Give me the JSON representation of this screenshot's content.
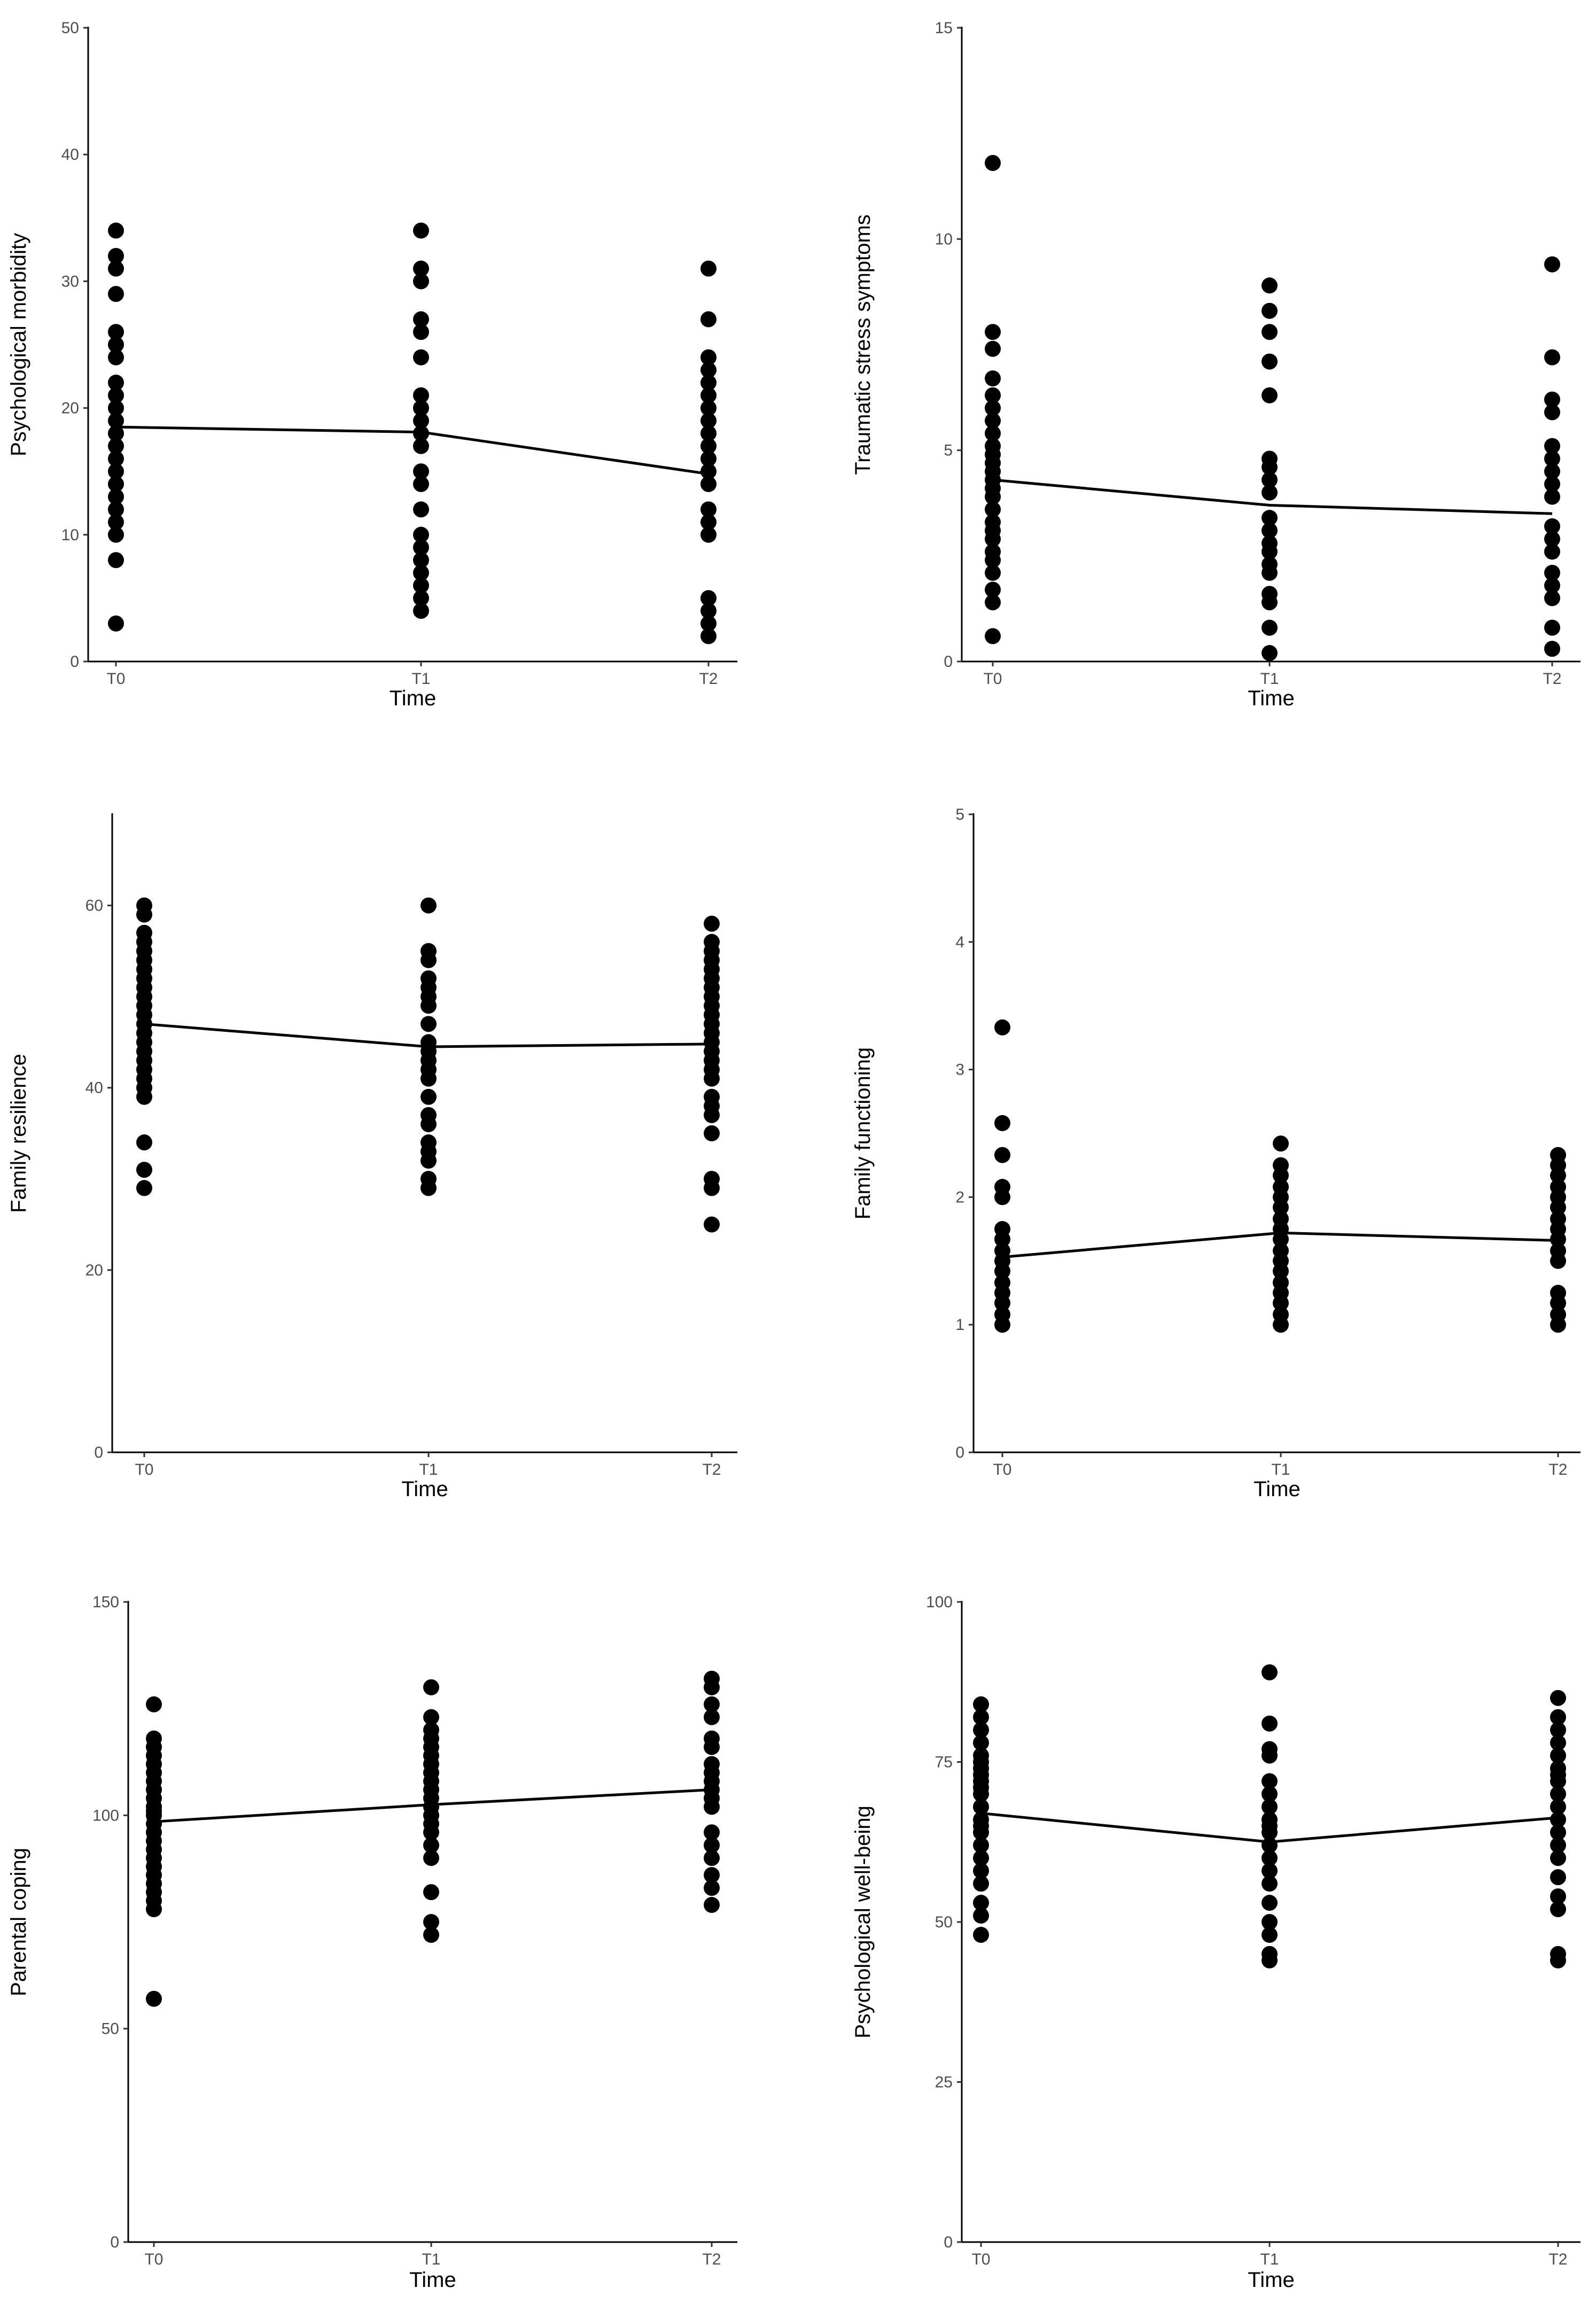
{
  "chart_data": [
    {
      "type": "scatter",
      "categories": [
        "T0",
        "T1",
        "T2"
      ],
      "xlabel": "Time",
      "ylabel": "Psychological morbidity",
      "ylim": [
        0,
        50
      ],
      "yticks": [
        0,
        10,
        20,
        30,
        40,
        50
      ],
      "grid": false,
      "points": {
        "T0": [
          3,
          8,
          10,
          11,
          12,
          13,
          14,
          15,
          16,
          17,
          18,
          19,
          20,
          21,
          22,
          24,
          25,
          26,
          29,
          31,
          32,
          34
        ],
        "T1": [
          4,
          5,
          6,
          7,
          8,
          9,
          10,
          12,
          14,
          15,
          17,
          18,
          19,
          20,
          21,
          24,
          26,
          27,
          30,
          31,
          34
        ],
        "T2": [
          2,
          3,
          4,
          5,
          10,
          11,
          12,
          14,
          15,
          16,
          17,
          18,
          19,
          20,
          21,
          22,
          23,
          24,
          27,
          31
        ]
      },
      "mean_line": [
        18.5,
        18.1,
        14.8
      ]
    },
    {
      "type": "scatter",
      "categories": [
        "T0",
        "T1",
        "T2"
      ],
      "xlabel": "Time",
      "ylabel": "Traumatic stress symptoms",
      "ylim": [
        0,
        15
      ],
      "yticks": [
        0,
        5,
        10,
        15
      ],
      "grid": false,
      "points": {
        "T0": [
          0.6,
          1.4,
          1.7,
          2.1,
          2.4,
          2.6,
          2.9,
          3.1,
          3.3,
          3.6,
          3.9,
          4.1,
          4.3,
          4.5,
          4.7,
          4.9,
          5.1,
          5.4,
          5.7,
          6.0,
          6.3,
          6.7,
          7.4,
          7.8,
          11.8
        ],
        "T1": [
          0.2,
          0.8,
          1.4,
          1.6,
          2.1,
          2.3,
          2.6,
          2.8,
          3.1,
          3.4,
          4.0,
          4.3,
          4.6,
          4.8,
          6.3,
          7.1,
          7.8,
          8.3,
          8.9
        ],
        "T2": [
          0.3,
          0.8,
          1.5,
          1.8,
          2.1,
          2.6,
          2.9,
          3.2,
          3.9,
          4.2,
          4.5,
          4.8,
          5.1,
          5.9,
          6.2,
          7.2,
          9.4
        ]
      },
      "mean_line": [
        4.3,
        3.7,
        3.5
      ]
    },
    {
      "type": "scatter",
      "categories": [
        "T0",
        "T1",
        "T2"
      ],
      "xlabel": "Time",
      "ylabel": "Family resilience",
      "ylim": [
        0,
        70
      ],
      "yticks": [
        0,
        20,
        40,
        60
      ],
      "grid": false,
      "points": {
        "T0": [
          29,
          31,
          34,
          39,
          40,
          41,
          42,
          43,
          44,
          45,
          46,
          47,
          48,
          49,
          50,
          51,
          52,
          53,
          54,
          55,
          56,
          57,
          59,
          60
        ],
        "T1": [
          29,
          30,
          32,
          33,
          34,
          36,
          37,
          39,
          41,
          42,
          43,
          44,
          45,
          47,
          49,
          50,
          51,
          52,
          54,
          55,
          60
        ],
        "T2": [
          25,
          29,
          30,
          35,
          37,
          38,
          39,
          41,
          42,
          43,
          44,
          45,
          46,
          47,
          48,
          49,
          50,
          51,
          52,
          53,
          54,
          55,
          56,
          58
        ]
      },
      "mean_line": [
        47.0,
        44.5,
        44.8
      ]
    },
    {
      "type": "scatter",
      "categories": [
        "T0",
        "T1",
        "T2"
      ],
      "xlabel": "Time",
      "ylabel": "Family functioning",
      "ylim": [
        0,
        5
      ],
      "yticks": [
        0,
        1,
        2,
        3,
        4,
        5
      ],
      "grid": false,
      "points": {
        "T0": [
          1.0,
          1.08,
          1.17,
          1.25,
          1.33,
          1.42,
          1.5,
          1.58,
          1.67,
          1.75,
          2.0,
          2.08,
          2.33,
          2.58,
          3.33
        ],
        "T1": [
          1.0,
          1.08,
          1.17,
          1.25,
          1.33,
          1.42,
          1.5,
          1.58,
          1.67,
          1.75,
          1.83,
          1.92,
          2.0,
          2.08,
          2.17,
          2.25,
          2.42
        ],
        "T2": [
          1.0,
          1.08,
          1.17,
          1.25,
          1.5,
          1.58,
          1.67,
          1.75,
          1.83,
          1.92,
          2.0,
          2.08,
          2.17,
          2.25,
          2.33
        ]
      },
      "mean_line": [
        1.53,
        1.72,
        1.66
      ]
    },
    {
      "type": "scatter",
      "categories": [
        "T0",
        "T1",
        "T2"
      ],
      "xlabel": "Time",
      "ylabel": "Parental coping",
      "ylim": [
        0,
        150
      ],
      "yticks": [
        0,
        50,
        100,
        150
      ],
      "grid": false,
      "points": {
        "T0": [
          57,
          78,
          80,
          82,
          84,
          86,
          88,
          90,
          92,
          94,
          96,
          98,
          100,
          101,
          102,
          104,
          106,
          108,
          110,
          112,
          114,
          116,
          118,
          126
        ],
        "T1": [
          72,
          75,
          82,
          90,
          93,
          96,
          98,
          100,
          102,
          104,
          106,
          108,
          110,
          112,
          114,
          116,
          118,
          120,
          123,
          130
        ],
        "T2": [
          79,
          83,
          86,
          90,
          93,
          96,
          102,
          104,
          106,
          108,
          110,
          112,
          116,
          118,
          123,
          126,
          130,
          132
        ]
      },
      "mean_line": [
        98.5,
        102.5,
        106.0
      ]
    },
    {
      "type": "scatter",
      "categories": [
        "T0",
        "T1",
        "T2"
      ],
      "xlabel": "Time",
      "ylabel": "Psychological well-being",
      "ylim": [
        0,
        100
      ],
      "yticks": [
        0,
        25,
        50,
        75,
        100
      ],
      "grid": false,
      "points": {
        "T0": [
          48,
          51,
          53,
          56,
          58,
          60,
          62,
          64,
          65,
          66,
          68,
          70,
          71,
          72,
          73,
          74,
          75,
          76,
          78,
          80,
          82,
          84
        ],
        "T1": [
          44,
          45,
          48,
          50,
          53,
          56,
          58,
          60,
          62,
          64,
          65,
          66,
          68,
          70,
          72,
          76,
          77,
          81,
          89
        ],
        "T2": [
          44,
          45,
          52,
          54,
          57,
          60,
          62,
          64,
          66,
          68,
          70,
          72,
          73,
          74,
          76,
          78,
          80,
          82,
          85
        ]
      },
      "mean_line": [
        67.0,
        62.5,
        66.3
      ]
    }
  ]
}
